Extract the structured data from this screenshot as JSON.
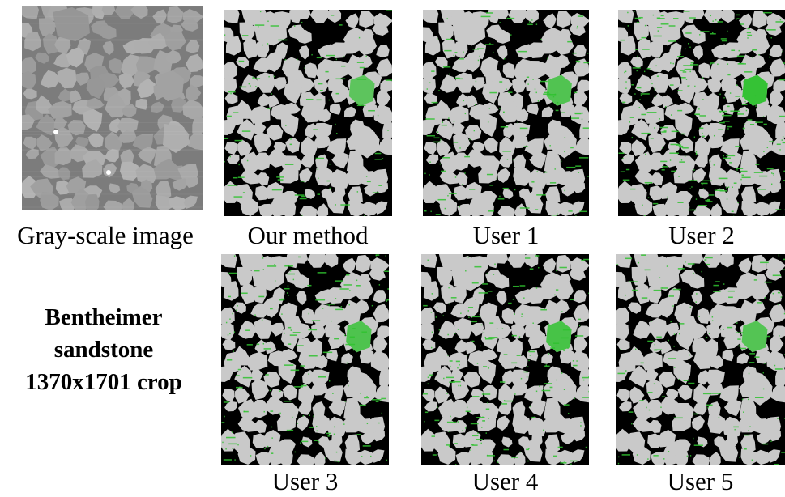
{
  "figure": {
    "panels": [
      {
        "id": "gray",
        "caption": "Gray-scale image",
        "style": "grayscale",
        "green_level": 0
      },
      {
        "id": "ours",
        "caption": "Our method",
        "style": "segmented",
        "green_level": 0.25
      },
      {
        "id": "user1",
        "caption": "User 1",
        "style": "segmented",
        "green_level": 0.45
      },
      {
        "id": "user2",
        "caption": "User 2",
        "style": "segmented",
        "green_level": 0.9
      },
      {
        "id": "user3",
        "caption": "User 3",
        "style": "segmented",
        "green_level": 0.5
      },
      {
        "id": "user4",
        "caption": "User 4",
        "style": "segmented",
        "green_level": 0.6
      },
      {
        "id": "user5",
        "caption": "User 5",
        "style": "segmented",
        "green_level": 0.4
      }
    ],
    "sample_label": {
      "line1": "Bentheimer",
      "line2": "sandstone",
      "line3": "1370x1701 crop"
    },
    "colors": {
      "grain_segmented": "#c9c9c9",
      "pore_segmented": "#000000",
      "grain_gray": "#a6a6a6",
      "pore_gray": "#5a5a5a",
      "bg_gray": "#7c7c7c",
      "highlight_green": "#2fc22f"
    }
  }
}
